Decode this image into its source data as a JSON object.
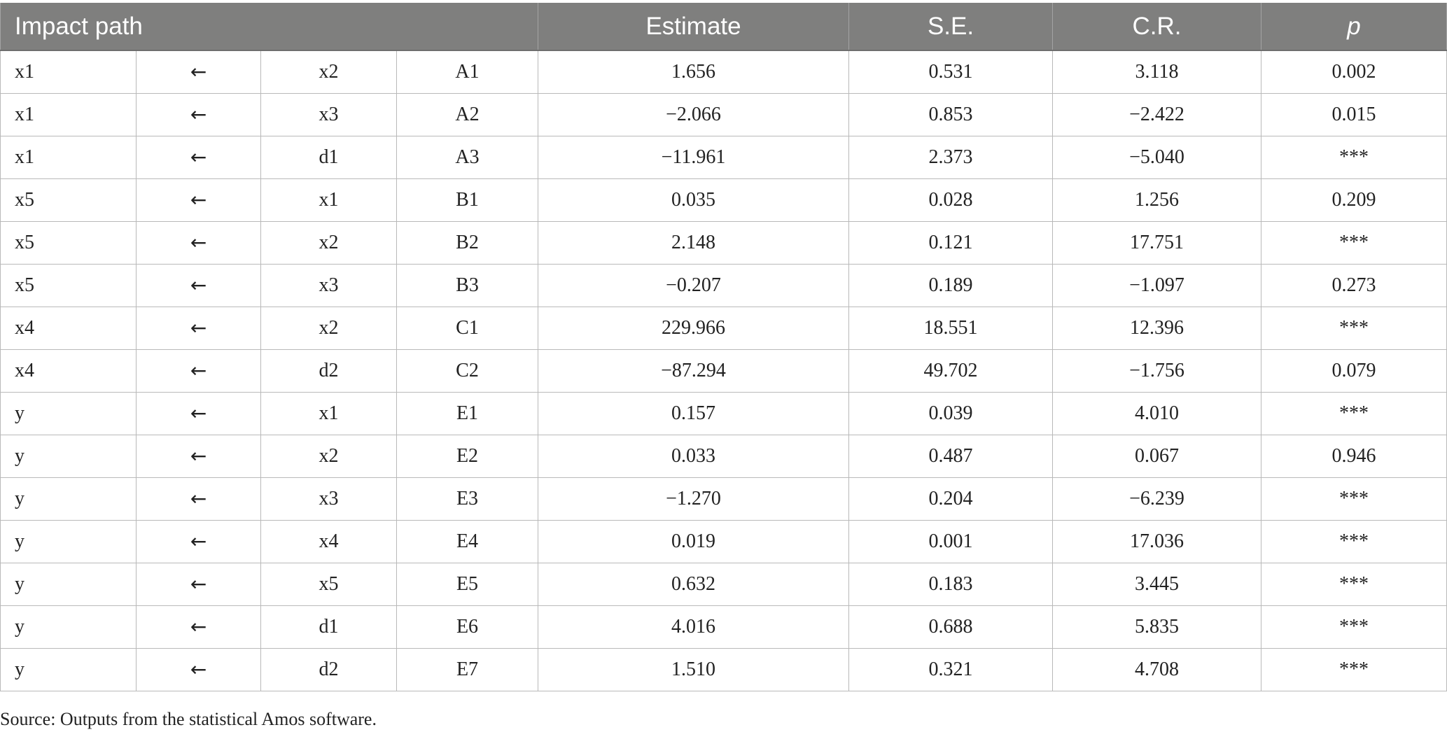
{
  "table": {
    "headers": {
      "impact_path": "Impact path",
      "estimate": "Estimate",
      "se": "S.E.",
      "cr": "C.R.",
      "p": "p"
    },
    "rows": [
      {
        "to": "x1",
        "arrow": "←",
        "from": "x2",
        "label": "A1",
        "estimate": "1.656",
        "se": "0.531",
        "cr": "3.118",
        "p": "0.002"
      },
      {
        "to": "x1",
        "arrow": "←",
        "from": "x3",
        "label": "A2",
        "estimate": "−2.066",
        "se": "0.853",
        "cr": "−2.422",
        "p": "0.015"
      },
      {
        "to": "x1",
        "arrow": "←",
        "from": "d1",
        "label": "A3",
        "estimate": "−11.961",
        "se": "2.373",
        "cr": "−5.040",
        "p": "***"
      },
      {
        "to": "x5",
        "arrow": "←",
        "from": "x1",
        "label": "B1",
        "estimate": "0.035",
        "se": "0.028",
        "cr": "1.256",
        "p": "0.209"
      },
      {
        "to": "x5",
        "arrow": "←",
        "from": "x2",
        "label": "B2",
        "estimate": "2.148",
        "se": "0.121",
        "cr": "17.751",
        "p": "***"
      },
      {
        "to": "x5",
        "arrow": "←",
        "from": "x3",
        "label": "B3",
        "estimate": "−0.207",
        "se": "0.189",
        "cr": "−1.097",
        "p": "0.273"
      },
      {
        "to": "x4",
        "arrow": "←",
        "from": "x2",
        "label": "C1",
        "estimate": "229.966",
        "se": "18.551",
        "cr": "12.396",
        "p": "***"
      },
      {
        "to": "x4",
        "arrow": "←",
        "from": "d2",
        "label": "C2",
        "estimate": "−87.294",
        "se": "49.702",
        "cr": "−1.756",
        "p": "0.079"
      },
      {
        "to": "y",
        "arrow": "←",
        "from": "x1",
        "label": "E1",
        "estimate": "0.157",
        "se": "0.039",
        "cr": "4.010",
        "p": "***"
      },
      {
        "to": "y",
        "arrow": "←",
        "from": "x2",
        "label": "E2",
        "estimate": "0.033",
        "se": "0.487",
        "cr": "0.067",
        "p": "0.946"
      },
      {
        "to": "y",
        "arrow": "←",
        "from": "x3",
        "label": "E3",
        "estimate": "−1.270",
        "se": "0.204",
        "cr": "−6.239",
        "p": "***"
      },
      {
        "to": "y",
        "arrow": "←",
        "from": "x4",
        "label": "E4",
        "estimate": "0.019",
        "se": "0.001",
        "cr": "17.036",
        "p": "***"
      },
      {
        "to": "y",
        "arrow": "←",
        "from": "x5",
        "label": "E5",
        "estimate": "0.632",
        "se": "0.183",
        "cr": "3.445",
        "p": "***"
      },
      {
        "to": "y",
        "arrow": "←",
        "from": "d1",
        "label": "E6",
        "estimate": "4.016",
        "se": "0.688",
        "cr": "5.835",
        "p": "***"
      },
      {
        "to": "y",
        "arrow": "←",
        "from": "d2",
        "label": "E7",
        "estimate": "1.510",
        "se": "0.321",
        "cr": "4.708",
        "p": "***"
      }
    ]
  },
  "footnote": "Source: Outputs from the statistical Amos software.",
  "colors": {
    "header_bg": "#7f7f7e",
    "header_text": "#ffffff",
    "grid": "#b9b9b9",
    "body_text": "#222222"
  }
}
